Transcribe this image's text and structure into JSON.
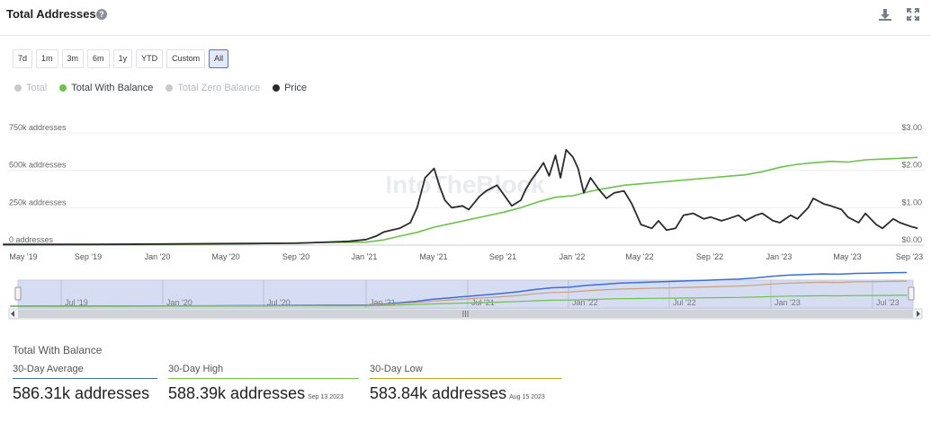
{
  "header": {
    "title": "Total Addresses",
    "help_icon": "question-circle-icon",
    "download_icon": "download-icon",
    "fullscreen_icon": "expand-icon"
  },
  "ranges": [
    {
      "label": "7d",
      "active": false
    },
    {
      "label": "1m",
      "active": false
    },
    {
      "label": "3m",
      "active": false
    },
    {
      "label": "6m",
      "active": false
    },
    {
      "label": "1y",
      "active": false
    },
    {
      "label": "YTD",
      "active": false
    },
    {
      "label": "Custom",
      "active": false
    },
    {
      "label": "All",
      "active": true
    }
  ],
  "legend": [
    {
      "label": "Total",
      "color": "#c7c9cc",
      "active": false
    },
    {
      "label": "Total With Balance",
      "color": "#6cc24a",
      "active": true
    },
    {
      "label": "Total Zero Balance",
      "color": "#c7c9cc",
      "active": false
    },
    {
      "label": "Price",
      "color": "#2b2b2b",
      "active": true
    }
  ],
  "watermark": "IntoTheBlock",
  "chart_data": {
    "type": "line",
    "x_tick_labels": [
      "May '19",
      "Sep '19",
      "Jan '20",
      "May '20",
      "Sep '20",
      "Jan '21",
      "May '21",
      "Sep '21",
      "Jan '22",
      "May '22",
      "Sep '22",
      "Jan '23",
      "May '23",
      "Sep '23"
    ],
    "y_left_ticks": [
      "0 addresses",
      "250k addresses",
      "500k addresses",
      "750k addresses"
    ],
    "y_right_ticks": [
      "$0.00",
      "$1.00",
      "$2.00",
      "$3.00"
    ],
    "ylim_left": [
      0,
      750000
    ],
    "ylim_right": [
      0,
      3.0
    ],
    "grid": true,
    "series": [
      {
        "name": "Total With Balance",
        "axis": "left",
        "color": "#6cc24a",
        "x": [
          "2019-04",
          "2019-07",
          "2019-10",
          "2020-01",
          "2020-04",
          "2020-07",
          "2020-09",
          "2020-11",
          "2021-01",
          "2021-02",
          "2021-03",
          "2021-04",
          "2021-05",
          "2021-06",
          "2021-07",
          "2021-08",
          "2021-09",
          "2021-10",
          "2021-11",
          "2021-12",
          "2022-01",
          "2022-02",
          "2022-03",
          "2022-04",
          "2022-05",
          "2022-06",
          "2022-07",
          "2022-08",
          "2022-09",
          "2022-10",
          "2022-11",
          "2022-12",
          "2023-01",
          "2023-02",
          "2023-03",
          "2023-04",
          "2023-05",
          "2023-06",
          "2023-07",
          "2023-08",
          "2023-09"
        ],
        "values": [
          0,
          1000,
          2000,
          3000,
          6000,
          10000,
          15000,
          18000,
          20000,
          35000,
          60000,
          85000,
          120000,
          145000,
          170000,
          195000,
          220000,
          250000,
          290000,
          320000,
          330000,
          360000,
          380000,
          400000,
          410000,
          420000,
          430000,
          440000,
          450000,
          460000,
          470000,
          490000,
          520000,
          540000,
          550000,
          560000,
          555000,
          570000,
          575000,
          580000,
          586000
        ]
      },
      {
        "name": "Price",
        "axis": "right",
        "color": "#2b2b2b",
        "x": [
          "2019-04",
          "2019-09",
          "2020-01",
          "2020-05",
          "2020-09",
          "2020-12",
          "2021-01",
          "2021-01-20",
          "2021-02",
          "2021-02-15",
          "2021-03",
          "2021-03-20",
          "2021-04",
          "2021-04-15",
          "2021-05",
          "2021-05-10",
          "2021-05-20",
          "2021-06",
          "2021-06-20",
          "2021-07",
          "2021-07-20",
          "2021-08",
          "2021-08-20",
          "2021-09",
          "2021-09-15",
          "2021-10",
          "2021-10-10",
          "2021-10-20",
          "2021-11",
          "2021-11-10",
          "2021-11-20",
          "2021-12",
          "2021-12-10",
          "2021-12-20",
          "2022-01",
          "2022-01-10",
          "2022-01-20",
          "2022-02",
          "2022-02-15",
          "2022-03",
          "2022-03-15",
          "2022-04",
          "2022-04-15",
          "2022-05",
          "2022-05-20",
          "2022-06",
          "2022-06-15",
          "2022-07",
          "2022-07-15",
          "2022-08",
          "2022-08-20",
          "2022-09",
          "2022-09-20",
          "2022-10",
          "2022-10-20",
          "2022-11",
          "2022-11-20",
          "2022-12",
          "2022-12-20",
          "2023-01",
          "2023-01-20",
          "2023-02",
          "2023-02-20",
          "2023-03",
          "2023-03-20",
          "2023-04",
          "2023-04-20",
          "2023-05",
          "2023-05-20",
          "2023-06",
          "2023-06-20",
          "2023-07",
          "2023-07-20",
          "2023-08",
          "2023-08-20",
          "2023-09"
        ],
        "values": [
          0.02,
          0.02,
          0.03,
          0.04,
          0.05,
          0.1,
          0.15,
          0.25,
          0.35,
          0.4,
          0.45,
          0.6,
          1.0,
          1.8,
          2.05,
          1.6,
          1.2,
          1.0,
          1.05,
          0.95,
          1.3,
          1.45,
          1.6,
          1.35,
          1.05,
          1.2,
          1.5,
          1.75,
          2.0,
          2.2,
          1.85,
          2.4,
          1.8,
          2.55,
          2.35,
          2.05,
          1.4,
          1.8,
          1.5,
          1.25,
          1.4,
          1.45,
          1.1,
          0.55,
          0.45,
          0.65,
          0.4,
          0.45,
          0.8,
          0.85,
          0.7,
          0.75,
          0.65,
          0.7,
          0.8,
          0.65,
          0.8,
          0.85,
          0.65,
          0.6,
          0.8,
          0.7,
          1.0,
          1.25,
          1.1,
          1.05,
          0.95,
          0.75,
          0.6,
          0.85,
          0.55,
          0.45,
          0.7,
          0.6,
          0.5,
          0.45
        ]
      }
    ],
    "navigator": {
      "x_tick_labels": [
        "Jul '19",
        "Jan '20",
        "Jul '20",
        "Jan '21",
        "Jul '21",
        "Jan '22",
        "Jul '22",
        "Jan '23",
        "Jul '23"
      ]
    }
  },
  "stats": {
    "title": "Total With Balance",
    "items": [
      {
        "label": "30-Day Average",
        "value": "586.31k addresses",
        "date": "",
        "color": "#3d6fa3"
      },
      {
        "label": "30-Day High",
        "value": "588.39k addresses",
        "date": "Sep 13 2023",
        "color": "#6cc24a"
      },
      {
        "label": "30-Day Low",
        "value": "583.84k addresses",
        "date": "Aug 15 2023",
        "color": "#c9a227"
      }
    ]
  }
}
